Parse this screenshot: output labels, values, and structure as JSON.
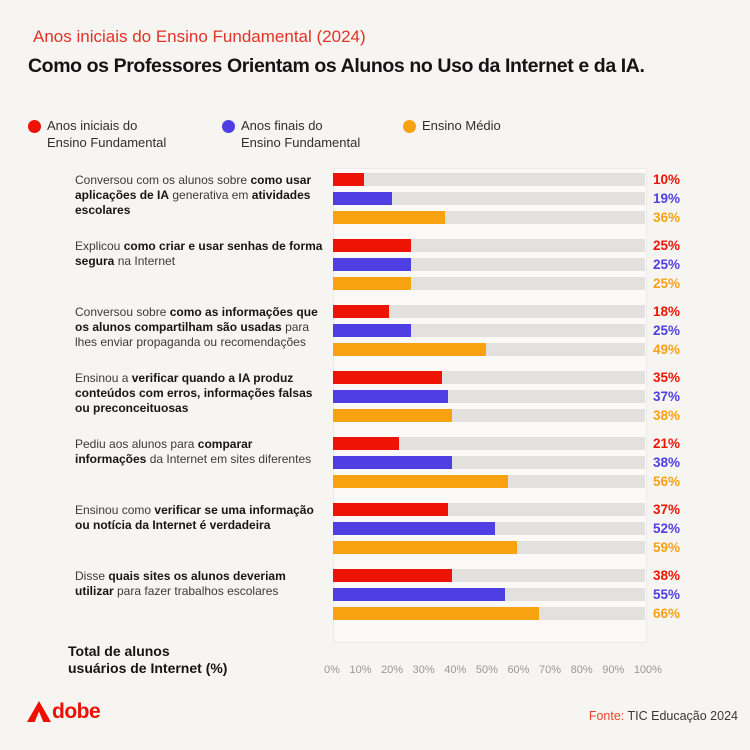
{
  "header": {
    "kicker": "Anos iniciais do Ensino Fundamental (2024)",
    "title": "Como os Professores Orientam os Alunos no Uso da Internet e da IA."
  },
  "theme": {
    "page_bg": "#f7f5f2",
    "track_gray": "#e3e1de",
    "red": "#ee1405",
    "purple": "#4f3fe3",
    "orange": "#f8a111",
    "kicker_red": "#e23227",
    "adobe_red": "#eb1000",
    "axis_gray": "#9a9894",
    "text_dark": "#161616"
  },
  "legend": {
    "items": [
      {
        "label": "Anos iniciais do Ensino Fundamental",
        "color": "#ee1405"
      },
      {
        "label": "Anos finais do Ensino Fundamental",
        "color": "#4f3fe3"
      },
      {
        "label": "Ensino Médio",
        "color": "#f8a111"
      }
    ]
  },
  "chart_data": {
    "type": "bar",
    "orientation": "horizontal",
    "title": "Como os Professores Orientam os Alunos no Uso da Internet e da IA.",
    "xlabel": "Total de alunos usuários de Internet (%)",
    "xlim": [
      0,
      100
    ],
    "grid": false,
    "legend_position": "top",
    "value_suffix": "%",
    "xticks": [
      "0%",
      "10%",
      "20%",
      "30%",
      "40%",
      "50%",
      "60%",
      "70%",
      "80%",
      "90%",
      "100%"
    ],
    "series": [
      {
        "key": "anos-iniciais",
        "name": "Anos iniciais do Ensino Fundamental",
        "color": "#ee1405",
        "values": [
          10,
          25,
          18,
          35,
          21,
          37,
          38
        ]
      },
      {
        "key": "anos-finais",
        "name": "Anos finais do Ensino Fundamental",
        "color": "#4f3fe3",
        "values": [
          19,
          25,
          25,
          37,
          38,
          52,
          55
        ]
      },
      {
        "key": "ensino-medio",
        "name": "Ensino Médio",
        "color": "#f8a111",
        "values": [
          36,
          25,
          49,
          38,
          56,
          59,
          66
        ]
      }
    ],
    "categories": [
      "Conversou com os alunos sobre como usar aplicações de IA generativa em atividades escolares",
      "Explicou como criar e usar senhas de forma segura na Internet",
      "Conversou sobre como as informações que os alunos compartilham são usadas para lhes enviar propaganda ou recomendações",
      "Ensinou a verificar quando a IA produz conteúdos com erros, informações falsas ou preconceituosas",
      "Pediu aos alunos para comparar informações da Internet em sites diferentes",
      "Ensinou como verificar se uma informação ou notícia da Internet é verdadeira",
      "Disse quais sites os alunos deveriam utilizar para fazer trabalhos escolares"
    ],
    "categories_rich": [
      [
        {
          "t": "Conversou com os alunos sobre ",
          "b": false
        },
        {
          "t": "como usar aplicações de IA",
          "b": true
        },
        {
          "t": " generativa em ",
          "b": false
        },
        {
          "t": "atividades escolares",
          "b": true
        }
      ],
      [
        {
          "t": "Explicou ",
          "b": false
        },
        {
          "t": "como criar e usar senhas de forma segura",
          "b": true
        },
        {
          "t": " na Internet",
          "b": false
        }
      ],
      [
        {
          "t": "Conversou sobre ",
          "b": false
        },
        {
          "t": "como as informações que os alunos compartilham são usadas",
          "b": true
        },
        {
          "t": " para lhes enviar propaganda ou recomendações",
          "b": false
        }
      ],
      [
        {
          "t": "Ensinou a ",
          "b": false
        },
        {
          "t": "verificar quando a IA produz conteúdos com erros, informações falsas ou preconceituosas",
          "b": true
        }
      ],
      [
        {
          "t": "Pediu aos alunos para ",
          "b": false
        },
        {
          "t": "comparar informações",
          "b": true
        },
        {
          "t": " da Internet em sites diferentes",
          "b": false
        }
      ],
      [
        {
          "t": "Ensinou como ",
          "b": false
        },
        {
          "t": "verificar se uma informação ou notícia da Internet é verdadeira",
          "b": true
        }
      ],
      [
        {
          "t": "Disse ",
          "b": false
        },
        {
          "t": "quais sites os alunos deveriam utilizar",
          "b": true
        },
        {
          "t": " para fazer trabalhos escolares",
          "b": false
        }
      ]
    ]
  },
  "axis_note": {
    "line1": "Total de alunos",
    "line2": "usuários de Internet (%)"
  },
  "footer": {
    "logo": "Adobe",
    "logo_wordmark_rest": "dobe",
    "source_prefix": "Fonte:",
    "source_text": "TIC Educação 2024"
  }
}
